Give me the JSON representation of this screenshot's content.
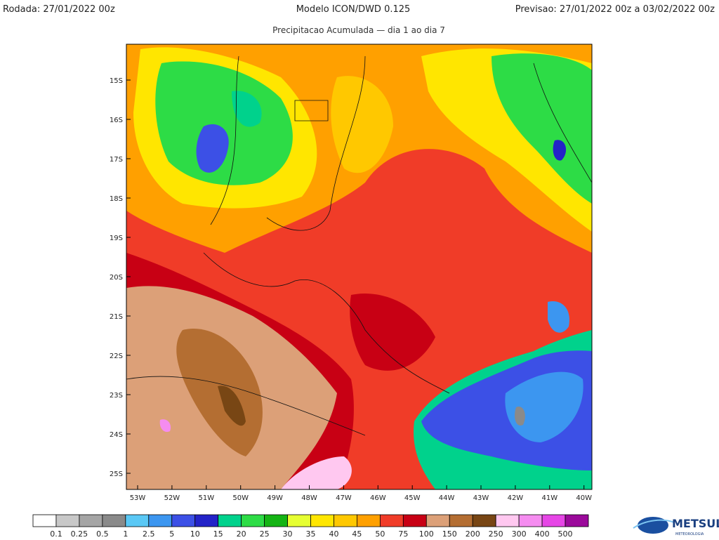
{
  "header": {
    "left": "Rodada: 27/01/2022 00z",
    "center": "Modelo ICON/DWD 0.125",
    "right": "Previsao: 27/01/2022 00z a 03/02/2022 00z",
    "subtitle": "Precipitacao Acumulada — dia 1 ao dia 7"
  },
  "map": {
    "lat_labels": [
      "15S",
      "16S",
      "17S",
      "18S",
      "19S",
      "20S",
      "21S",
      "22S",
      "23S",
      "24S",
      "25S"
    ],
    "lon_labels": [
      "53W",
      "52W",
      "51W",
      "50W",
      "49W",
      "48W",
      "47W",
      "46W",
      "45W",
      "44W",
      "43W",
      "42W",
      "41W",
      "40W"
    ]
  },
  "legend": {
    "labels": [
      "0.1",
      "0.25",
      "0.5",
      "1",
      "2.5",
      "5",
      "10",
      "15",
      "20",
      "25",
      "30",
      "35",
      "40",
      "45",
      "50",
      "75",
      "100",
      "150",
      "200",
      "250",
      "300",
      "400",
      "500"
    ],
    "colors": [
      "#ffffff",
      "#c8c8c8",
      "#a5a5a5",
      "#8a8a8a",
      "#5ac8f5",
      "#3c96f0",
      "#3c50e6",
      "#2323c8",
      "#00d28c",
      "#2ddc46",
      "#14b414",
      "#e6ff32",
      "#ffe600",
      "#ffc800",
      "#ffa000",
      "#f03c28",
      "#c80014",
      "#dca078",
      "#b46e32",
      "#784614",
      "#ffc8f0",
      "#f58cf0",
      "#e646e6",
      "#9b0a9b"
    ]
  },
  "logo": {
    "name": "METSUL",
    "tagline": "METEOROLOGIA"
  }
}
